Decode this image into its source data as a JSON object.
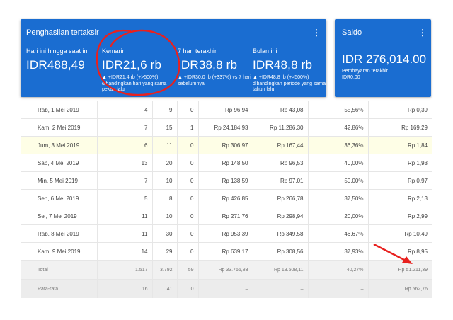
{
  "earnings_card": {
    "title": "Penghasilan tertaksir",
    "menu_icon": "⋮",
    "metrics": [
      {
        "label": "Hari ini hingga saat ini",
        "value": "IDR488,49",
        "change": ""
      },
      {
        "label": "Kemarin",
        "value": "IDR21,6 rb",
        "change": "▲ +IDR21,4 rb (+>500%) dibandingkan hari yang sama pekan lalu"
      },
      {
        "label": "7 hari terakhir",
        "value": "IDR38,8 rb",
        "change": "▲ +IDR30,0 rb (+337%) vs 7 hari sebelumnya"
      },
      {
        "label": "Bulan ini",
        "value": "IDR48,8 rb",
        "change": "▲ +IDR48,8 rb (+>500%) dibandingkan periode yang sama tahun lalu"
      }
    ]
  },
  "saldo_card": {
    "title": "Saldo",
    "menu_icon": "⋮",
    "value": "IDR 276,014.00",
    "sub_label": "Pembayaran terakhir",
    "sub_value": "IDR0,00"
  },
  "table": {
    "rows": [
      [
        "Rab, 1 Mei 2019",
        "4",
        "9",
        "0",
        "Rp 96,94",
        "Rp 43,08",
        "55,56%",
        "Rp 0,39"
      ],
      [
        "Kam, 2 Mei 2019",
        "7",
        "15",
        "1",
        "Rp 24.184,93",
        "Rp 11.286,30",
        "42,86%",
        "Rp 169,29"
      ],
      [
        "Jum, 3 Mei 2019",
        "6",
        "11",
        "0",
        "Rp 306,97",
        "Rp 167,44",
        "36,36%",
        "Rp 1,84"
      ],
      [
        "Sab, 4 Mei 2019",
        "13",
        "20",
        "0",
        "Rp 148,50",
        "Rp 96,53",
        "40,00%",
        "Rp 1,93"
      ],
      [
        "Min, 5 Mei 2019",
        "7",
        "10",
        "0",
        "Rp 138,59",
        "Rp 97,01",
        "50,00%",
        "Rp 0,97"
      ],
      [
        "Sen, 6 Mei 2019",
        "5",
        "8",
        "0",
        "Rp 426,85",
        "Rp 266,78",
        "37,50%",
        "Rp 2,13"
      ],
      [
        "Sel, 7 Mei 2019",
        "11",
        "10",
        "0",
        "Rp 271,76",
        "Rp 298,94",
        "20,00%",
        "Rp 2,99"
      ],
      [
        "Rab, 8 Mei 2019",
        "11",
        "30",
        "0",
        "Rp 953,39",
        "Rp 349,58",
        "46,67%",
        "Rp 10,49"
      ],
      [
        "Kam, 9 Mei 2019",
        "14",
        "29",
        "0",
        "Rp 639,17",
        "Rp 308,56",
        "37,93%",
        "Rp 8,95"
      ]
    ],
    "highlighted_row": 2,
    "total": [
      "Total",
      "1.517",
      "3.792",
      "59",
      "Rp 33.765,83",
      "Rp 13.508,11",
      "40,27%",
      "Rp 51.211,39"
    ],
    "average": [
      "Rata-rata",
      "16",
      "41",
      "0",
      "–",
      "–",
      "–",
      "Rp 562,76"
    ]
  },
  "annotation_color": "#e8211f",
  "card_color": "#1a6dd1"
}
